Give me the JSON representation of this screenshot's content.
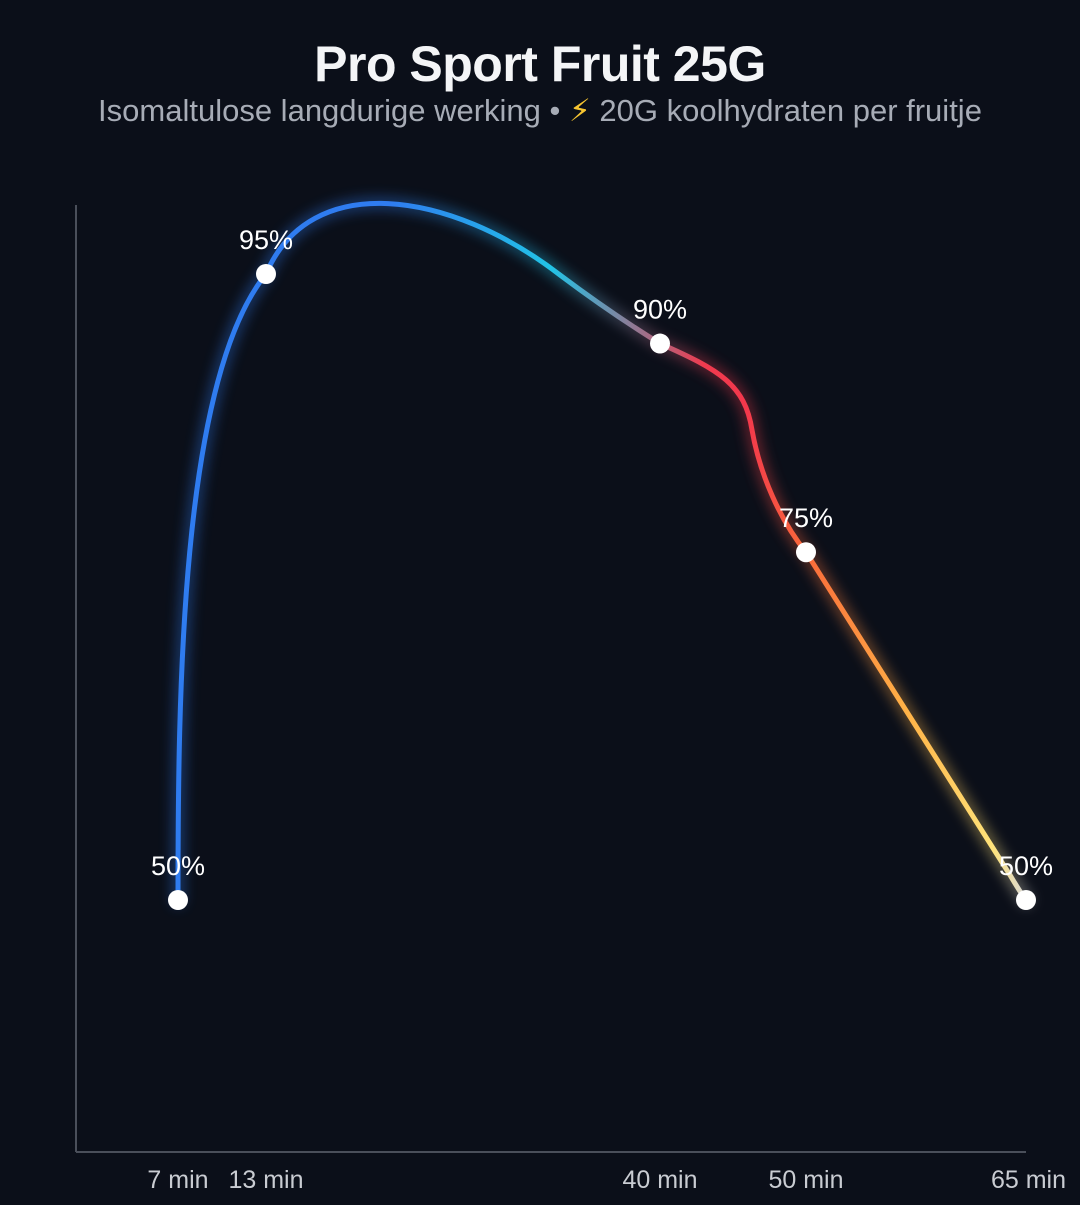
{
  "chart_data": {
    "type": "line",
    "title": "Pro Sport Fruit 25G",
    "subtitle": {
      "text_before": "Isomaltulose langdurige werking • ",
      "icon": "lightning-bolt-icon",
      "icon_glyph": "⚡",
      "text_after": " 20G koolhydraten per fruitje"
    },
    "x": [
      7,
      13,
      40,
      50,
      65
    ],
    "x_tick_labels": [
      "7 min",
      "13 min",
      "40 min",
      "50 min",
      "65 min"
    ],
    "y": [
      50,
      95,
      90,
      75,
      50
    ],
    "point_labels": [
      "50%",
      "95%",
      "90%",
      "75%",
      "50%"
    ],
    "xlabel": "",
    "ylabel": "",
    "grid": false,
    "legend": "none",
    "line_gradient_colors": [
      "#2f7cf0",
      "#2f7cf0",
      "#22c3e6",
      "#ef3b4f",
      "#f3384c",
      "#f96a3a",
      "#ffb347",
      "#ffe37a",
      "#d9d9d9"
    ]
  }
}
